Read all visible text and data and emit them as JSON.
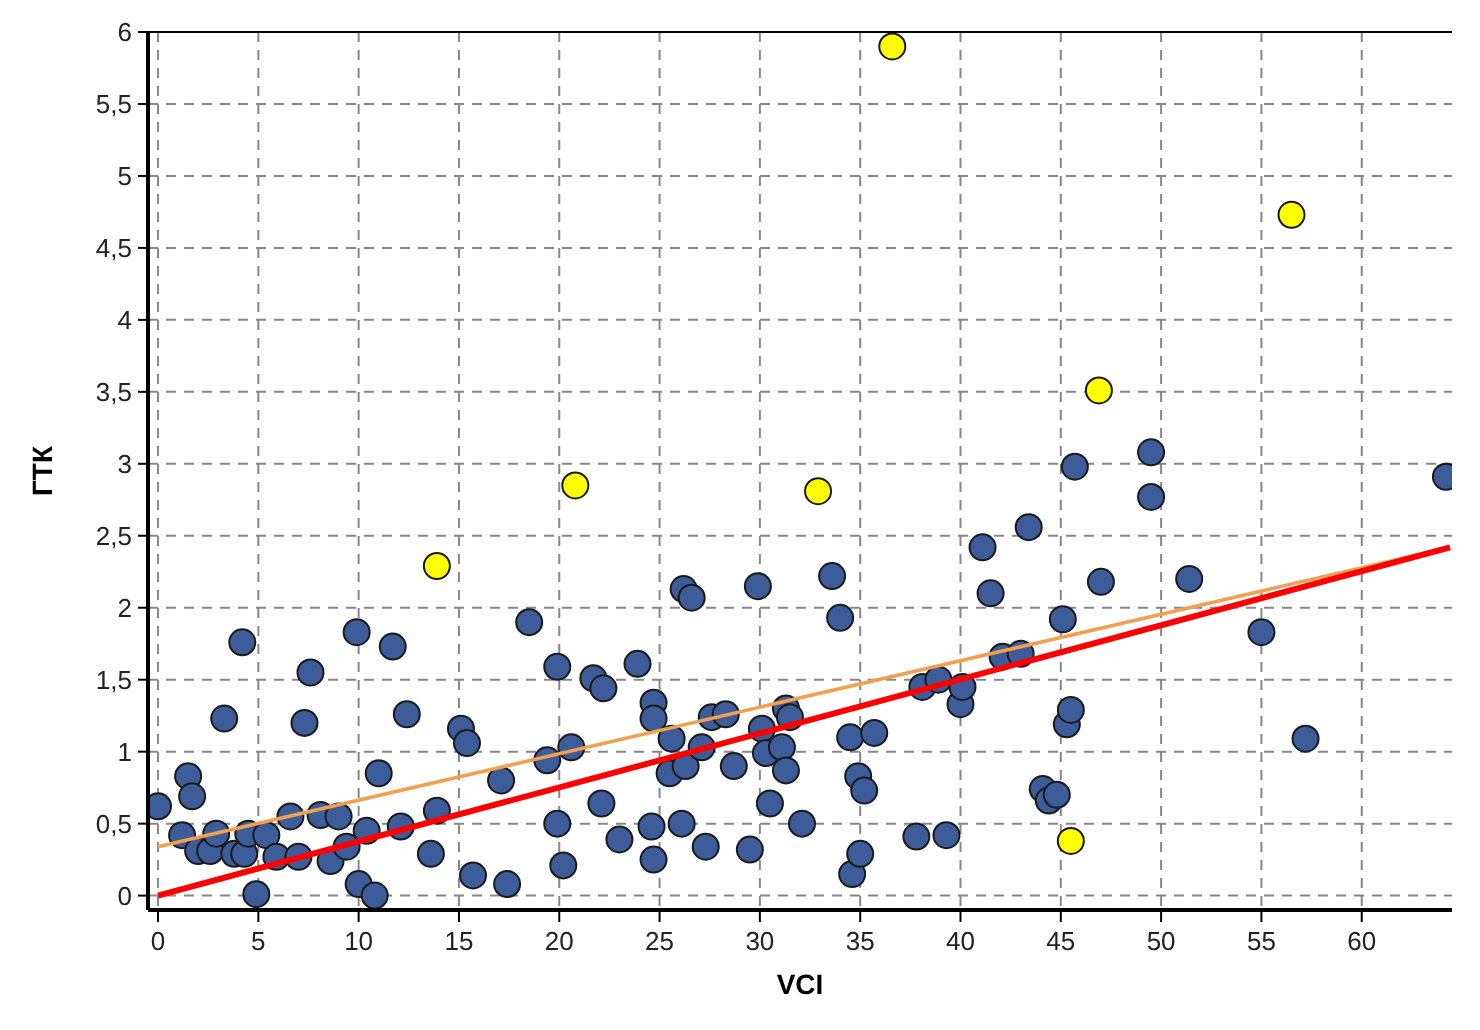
{
  "chart_data": {
    "type": "scatter",
    "xlabel": "VCI",
    "ylabel": "ГТК",
    "xlim": [
      -0.5,
      64.5
    ],
    "ylim": [
      -0.1,
      6
    ],
    "xticks": [
      0,
      5,
      10,
      15,
      20,
      25,
      30,
      35,
      40,
      45,
      50,
      55,
      60
    ],
    "yticks": [
      0,
      {
        "value": 0.5,
        "label": "0,5"
      },
      1,
      {
        "value": 1.5,
        "label": "1,5"
      },
      2,
      {
        "value": 2.5,
        "label": "2,5"
      },
      3,
      {
        "value": 3.5,
        "label": "3,5"
      },
      4,
      {
        "value": 4.5,
        "label": "4,5"
      },
      5,
      {
        "value": 5.5,
        "label": "5,5"
      },
      6
    ],
    "grid": true,
    "marker": "circle",
    "series": [
      {
        "color": "#3d5c9a",
        "x": [
          0,
          1.5,
          1.7,
          1.2,
          2.0,
          2.6,
          2.9,
          3.3,
          3.8,
          4.2,
          4.3,
          4.5,
          4.9,
          5.4,
          5.9,
          6.6,
          7.0,
          7.3,
          7.6,
          8.1,
          8.6,
          9.0,
          9.4,
          9.9,
          10,
          10.4,
          10.8,
          11.0,
          11.7,
          12.1,
          12.4,
          13.6,
          13.9,
          15.1,
          15.4,
          15.7,
          17.1,
          17.4,
          18.5,
          19.4,
          19.9,
          19.9,
          20.2,
          20.6,
          21.7,
          22.2,
          22.1,
          23.0,
          23.9,
          24.7,
          24.7,
          24.6,
          24.7,
          25.5,
          25.6,
          26.1,
          26.3,
          26.2,
          26.6,
          27.1,
          27.6,
          27.3,
          28.3,
          28.7,
          29.5,
          29.9,
          30.1,
          30.3,
          30.5,
          31.1,
          31.3,
          31.3,
          31.5,
          32.1,
          33.6,
          34.0,
          34.5,
          34.6,
          35.0,
          34.9,
          35.2,
          35.7,
          37.8,
          38.1,
          38.9,
          39.3,
          40.0,
          40.1,
          41.1,
          41.5,
          42.1,
          43.0,
          43.4,
          44.1,
          44.4,
          44.8,
          45.1,
          45.3,
          45.5,
          45.7,
          47.0,
          49.5,
          49.5,
          51.4,
          55.0,
          57.2,
          64.2
        ],
        "values": [
          0.62,
          0.83,
          0.69,
          0.42,
          0.31,
          0.31,
          0.43,
          1.23,
          0.29,
          1.76,
          0.29,
          0.43,
          0.01,
          0.42,
          0.27,
          0.55,
          0.27,
          1.2,
          1.55,
          0.56,
          0.24,
          0.55,
          0.34,
          1.83,
          0.08,
          0.45,
          0.0,
          0.85,
          1.73,
          0.48,
          1.26,
          0.29,
          0.59,
          1.16,
          1.06,
          0.14,
          0.8,
          0.08,
          1.9,
          0.94,
          1.59,
          0.5,
          0.21,
          1.03,
          1.51,
          1.44,
          0.64,
          0.39,
          1.61,
          1.34,
          1.23,
          0.48,
          0.25,
          0.85,
          1.09,
          0.5,
          0.9,
          2.13,
          2.07,
          1.03,
          1.24,
          0.34,
          1.26,
          0.9,
          0.32,
          2.15,
          1.16,
          0.99,
          0.64,
          1.03,
          1.3,
          0.87,
          1.24,
          0.5,
          2.22,
          1.93,
          1.1,
          0.15,
          0.29,
          0.83,
          0.73,
          1.13,
          0.41,
          1.45,
          1.5,
          0.42,
          1.33,
          1.45,
          2.42,
          2.1,
          1.66,
          1.68,
          2.56,
          0.74,
          0.66,
          0.7,
          1.92,
          1.19,
          1.29,
          2.98,
          2.18,
          3.08,
          2.77,
          2.2,
          1.83,
          1.09,
          2.91
        ]
      },
      {
        "color": "#ffff00",
        "x": [
          13.9,
          20.8,
          32.9,
          36.6,
          45.5,
          46.9,
          56.5
        ],
        "values": [
          2.29,
          2.85,
          2.81,
          5.9,
          0.38,
          3.51,
          4.73
        ]
      },
      {
        "type": "line",
        "color": "#f0a050",
        "marker": "none",
        "x": [
          0,
          64.4
        ],
        "values": [
          0.34,
          2.42
        ]
      },
      {
        "type": "line",
        "color": "#ff0000",
        "marker": "none",
        "x": [
          0,
          64.4
        ],
        "values": [
          0,
          2.42
        ]
      }
    ]
  }
}
